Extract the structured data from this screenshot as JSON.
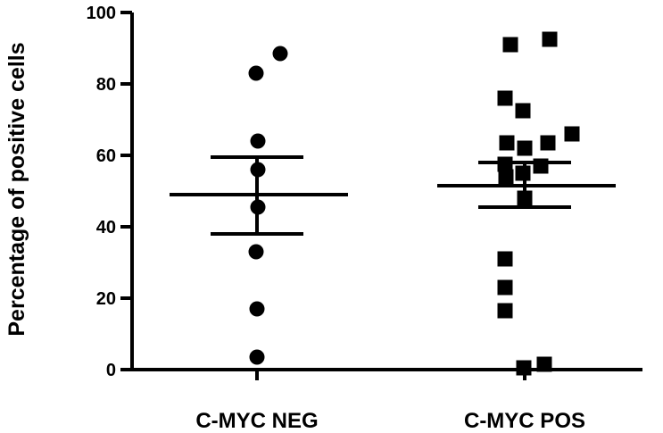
{
  "chart_data": {
    "type": "scatter",
    "title": "",
    "xlabel": "",
    "ylabel": "Percentage of positive cells",
    "ylim": [
      0,
      100
    ],
    "yticks": [
      "0",
      "20",
      "40",
      "60",
      "80",
      "100"
    ],
    "categories": [
      "C-MYC NEG",
      "C-MYC POS"
    ],
    "grid": false,
    "legend": "none",
    "series": [
      {
        "category": "C-MYC NEG",
        "marker": "circle",
        "points": [
          {
            "x": "C-MYC NEG",
            "y": 88.5
          },
          {
            "x": "C-MYC NEG",
            "y": 83
          },
          {
            "x": "C-MYC NEG",
            "y": 64
          },
          {
            "x": "C-MYC NEG",
            "y": 56
          },
          {
            "x": "C-MYC NEG",
            "y": 45.5
          },
          {
            "x": "C-MYC NEG",
            "y": 33
          },
          {
            "x": "C-MYC NEG",
            "y": 17
          },
          {
            "x": "C-MYC NEG",
            "y": 3.5
          }
        ],
        "mean": 49,
        "sem_upper": 59.5,
        "sem_lower": 38
      },
      {
        "category": "C-MYC POS",
        "marker": "square",
        "points": [
          {
            "x": "C-MYC POS",
            "y": 92.5
          },
          {
            "x": "C-MYC POS",
            "y": 91
          },
          {
            "x": "C-MYC POS",
            "y": 76
          },
          {
            "x": "C-MYC POS",
            "y": 72.5
          },
          {
            "x": "C-MYC POS",
            "y": 66
          },
          {
            "x": "C-MYC POS",
            "y": 63.5
          },
          {
            "x": "C-MYC POS",
            "y": 63.5
          },
          {
            "x": "C-MYC POS",
            "y": 62
          },
          {
            "x": "C-MYC POS",
            "y": 57.5
          },
          {
            "x": "C-MYC POS",
            "y": 57
          },
          {
            "x": "C-MYC POS",
            "y": 55
          },
          {
            "x": "C-MYC POS",
            "y": 54
          },
          {
            "x": "C-MYC POS",
            "y": 48
          },
          {
            "x": "C-MYC POS",
            "y": 31
          },
          {
            "x": "C-MYC POS",
            "y": 23
          },
          {
            "x": "C-MYC POS",
            "y": 16.5
          },
          {
            "x": "C-MYC POS",
            "y": 1.5
          },
          {
            "x": "C-MYC POS",
            "y": 0.5
          }
        ],
        "mean": 51.5,
        "sem_upper": 58,
        "sem_lower": 45.5
      }
    ],
    "colors": {
      "marker": "#000000",
      "axis": "#000000"
    }
  }
}
